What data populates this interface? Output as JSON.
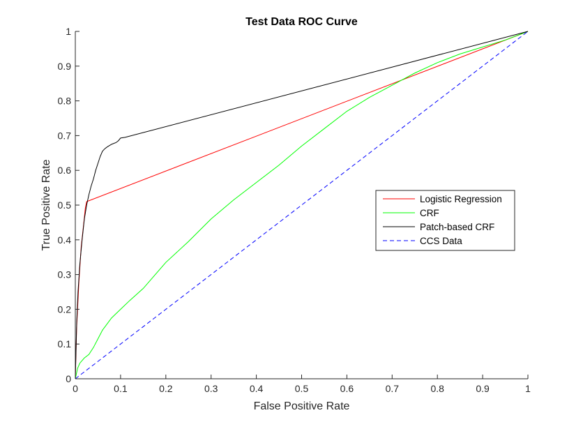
{
  "chart_data": {
    "type": "line",
    "title": "Test Data ROC Curve",
    "xlabel": "False Positive Rate",
    "ylabel": "True Positive Rate",
    "xlim": [
      0,
      1
    ],
    "ylim": [
      0,
      1
    ],
    "xticks": [
      "0",
      "0.1",
      "0.2",
      "0.3",
      "0.4",
      "0.5",
      "0.6",
      "0.7",
      "0.8",
      "0.9",
      "1"
    ],
    "yticks": [
      "0",
      "0.1",
      "0.2",
      "0.3",
      "0.4",
      "0.5",
      "0.6",
      "0.7",
      "0.8",
      "0.9",
      "1"
    ],
    "grid": false,
    "legend_position": "right",
    "series": [
      {
        "name": "Logistic Regression",
        "color": "#ff0000",
        "dash": "solid",
        "x": [
          0,
          0.003,
          0.008,
          0.013,
          0.018,
          0.022,
          0.025,
          1
        ],
        "y": [
          0,
          0.15,
          0.28,
          0.38,
          0.44,
          0.49,
          0.51,
          1
        ]
      },
      {
        "name": "CRF",
        "color": "#00ff00",
        "dash": "solid",
        "x": [
          0,
          0.005,
          0.01,
          0.02,
          0.03,
          0.04,
          0.05,
          0.06,
          0.08,
          0.1,
          0.12,
          0.15,
          0.2,
          0.25,
          0.3,
          0.35,
          0.4,
          0.45,
          0.5,
          0.55,
          0.6,
          0.65,
          0.7,
          0.75,
          0.8,
          0.85,
          0.9,
          0.95,
          1
        ],
        "y": [
          0,
          0.03,
          0.045,
          0.06,
          0.07,
          0.09,
          0.115,
          0.14,
          0.175,
          0.2,
          0.225,
          0.26,
          0.335,
          0.395,
          0.46,
          0.515,
          0.565,
          0.615,
          0.67,
          0.72,
          0.77,
          0.81,
          0.845,
          0.88,
          0.91,
          0.935,
          0.955,
          0.975,
          1
        ]
      },
      {
        "name": "Patch-based CRF",
        "color": "#000000",
        "dash": "solid",
        "x": [
          0,
          0.003,
          0.006,
          0.01,
          0.015,
          0.02,
          0.025,
          0.03,
          0.035,
          0.04,
          0.045,
          0.05,
          0.055,
          0.06,
          0.065,
          0.07,
          0.08,
          0.09,
          0.095,
          0.1,
          0.11,
          1
        ],
        "y": [
          0,
          0.16,
          0.25,
          0.33,
          0.4,
          0.46,
          0.5,
          0.53,
          0.555,
          0.575,
          0.6,
          0.62,
          0.64,
          0.655,
          0.662,
          0.667,
          0.675,
          0.68,
          0.685,
          0.693,
          0.695,
          1
        ]
      },
      {
        "name": "CCS Data",
        "color": "#0000ff",
        "dash": "dashed",
        "x": [
          0,
          1
        ],
        "y": [
          0,
          1
        ]
      }
    ]
  }
}
